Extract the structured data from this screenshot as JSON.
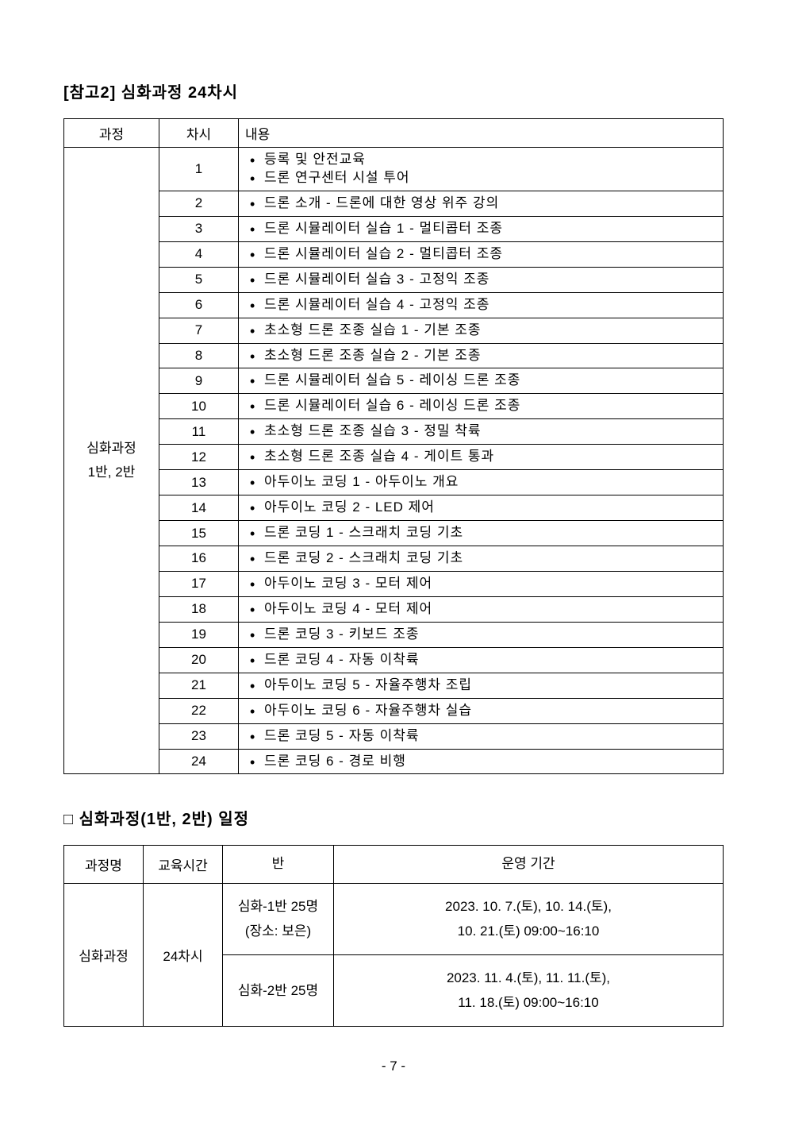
{
  "section_title": "[참고2] 심화과정 24차시",
  "course_table": {
    "headers": {
      "course": "과정",
      "session": "차시",
      "content": "내용"
    },
    "course_name": "심화과정\n1반, 2반",
    "rows": [
      {
        "session": "1",
        "items": [
          "등록 및 안전교육",
          "드론 연구센터 시설 투어"
        ]
      },
      {
        "session": "2",
        "items": [
          "드론 소개 - 드론에 대한 영상 위주 강의"
        ]
      },
      {
        "session": "3",
        "items": [
          "드론 시뮬레이터 실습 1 - 멀티콥터 조종"
        ]
      },
      {
        "session": "4",
        "items": [
          "드론 시뮬레이터 실습 2 - 멀티콥터 조종"
        ]
      },
      {
        "session": "5",
        "items": [
          "드론 시뮬레이터 실습 3 - 고정익 조종"
        ]
      },
      {
        "session": "6",
        "items": [
          "드론 시뮬레이터 실습 4 - 고정익 조종"
        ]
      },
      {
        "session": "7",
        "items": [
          "초소형 드론 조종 실습 1 - 기본 조종"
        ]
      },
      {
        "session": "8",
        "items": [
          "초소형 드론 조종 실습 2 - 기본 조종"
        ]
      },
      {
        "session": "9",
        "items": [
          "드론 시뮬레이터 실습 5 - 레이싱 드론 조종"
        ]
      },
      {
        "session": "10",
        "items": [
          "드론 시뮬레이터 실습 6 - 레이싱 드론 조종"
        ]
      },
      {
        "session": "11",
        "items": [
          "초소형 드론 조종 실습 3 - 정밀 착륙"
        ]
      },
      {
        "session": "12",
        "items": [
          "초소형 드론 조종 실습 4 - 게이트 통과"
        ]
      },
      {
        "session": "13",
        "items": [
          "아두이노 코딩 1 - 아두이노 개요"
        ]
      },
      {
        "session": "14",
        "items": [
          "아두이노 코딩 2 - LED 제어"
        ]
      },
      {
        "session": "15",
        "items": [
          "드론 코딩 1 - 스크래치 코딩 기초"
        ]
      },
      {
        "session": "16",
        "items": [
          "드론 코딩 2 - 스크래치 코딩 기초"
        ]
      },
      {
        "session": "17",
        "items": [
          "아두이노 코딩 3 - 모터 제어"
        ]
      },
      {
        "session": "18",
        "items": [
          "아두이노 코딩 4 - 모터 제어"
        ]
      },
      {
        "session": "19",
        "items": [
          "드론 코딩 3 - 키보드 조종"
        ]
      },
      {
        "session": "20",
        "items": [
          "드론 코딩 4 - 자동 이착륙"
        ]
      },
      {
        "session": "21",
        "items": [
          "아두이노 코딩 5 - 자율주행차 조립"
        ]
      },
      {
        "session": "22",
        "items": [
          "아두이노 코딩 6 - 자율주행차 실습"
        ]
      },
      {
        "session": "23",
        "items": [
          "드론 코딩 5 - 자동 이착륙"
        ]
      },
      {
        "session": "24",
        "items": [
          "드론 코딩 6 - 경로 비행"
        ]
      }
    ]
  },
  "schedule_heading": "□ 심화과정(1반, 2반) 일정",
  "schedule_table": {
    "headers": {
      "name": "과정명",
      "hours": "교육시간",
      "class": "반",
      "period": "운영 기간"
    },
    "course_name": "심화과정",
    "hours": "24차시",
    "rows": [
      {
        "class_line1": "심화-1반 25명",
        "class_line2": "(장소: 보은)",
        "period_line1": "2023. 10. 7.(토), 10. 14.(토),",
        "period_line2": "10. 21.(토) 09:00~16:10"
      },
      {
        "class_line1": "심화-2반 25명",
        "class_line2": "",
        "period_line1": "2023. 11. 4.(토), 11. 11.(토),",
        "period_line2": "11. 18.(토) 09:00~16:10"
      }
    ]
  },
  "page_number": "- 7 -"
}
